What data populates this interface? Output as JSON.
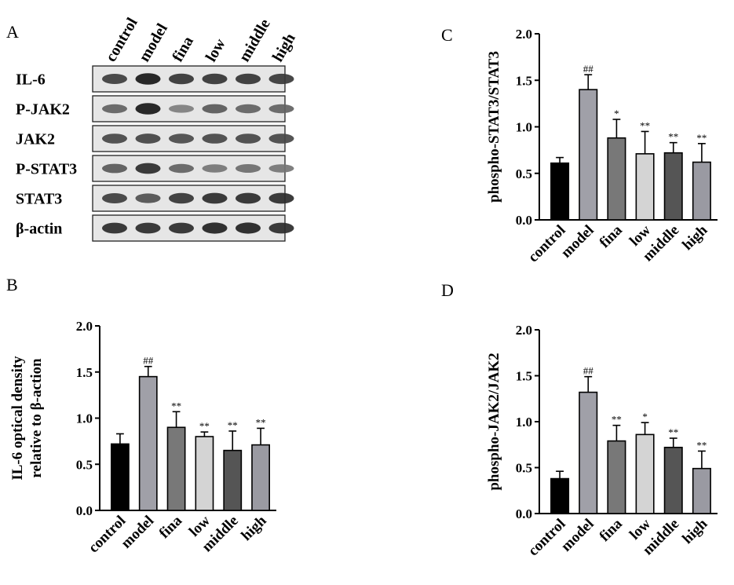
{
  "panel_letters": {
    "a": "A",
    "b": "B",
    "c": "C",
    "d": "D"
  },
  "western_blot": {
    "lanes": [
      "control",
      "model",
      "fina",
      "low",
      "middle",
      "high"
    ],
    "proteins": [
      "IL-6",
      "P-JAK2",
      "JAK2",
      "P-STAT3",
      "STAT3",
      "β-actin"
    ],
    "band_intensity": [
      [
        0.75,
        0.95,
        0.8,
        0.8,
        0.8,
        0.78
      ],
      [
        0.55,
        0.95,
        0.4,
        0.6,
        0.55,
        0.55
      ],
      [
        0.7,
        0.72,
        0.68,
        0.7,
        0.7,
        0.7
      ],
      [
        0.6,
        0.85,
        0.55,
        0.45,
        0.5,
        0.45
      ],
      [
        0.75,
        0.65,
        0.8,
        0.85,
        0.85,
        0.85
      ],
      [
        0.85,
        0.85,
        0.85,
        0.9,
        0.9,
        0.85
      ]
    ]
  },
  "chart_data": [
    {
      "panel": "B",
      "type": "bar",
      "categories": [
        "control",
        "model",
        "fina",
        "low",
        "middle",
        "high"
      ],
      "values": [
        0.72,
        1.45,
        0.9,
        0.8,
        0.65,
        0.71
      ],
      "errors": [
        0.11,
        0.11,
        0.17,
        0.05,
        0.21,
        0.18
      ],
      "significance": [
        "",
        "##",
        "**",
        "**",
        "**",
        "**"
      ],
      "colors": [
        "#000000",
        "#a0a0a8",
        "#787878",
        "#d4d4d4",
        "#555555",
        "#9a9aa2"
      ],
      "ylabel": "IL-6 optical density relative to β-action",
      "ylabel_lines": [
        "IL-6 optical density",
        "relative to β-action"
      ],
      "ylim": [
        0,
        2.0
      ],
      "yticks": [
        "0.0",
        "0.5",
        "1.0",
        "1.5",
        "2.0"
      ],
      "grid": false
    },
    {
      "panel": "C",
      "type": "bar",
      "categories": [
        "control",
        "model",
        "fina",
        "low",
        "middle",
        "high"
      ],
      "values": [
        0.61,
        1.4,
        0.88,
        0.71,
        0.72,
        0.62
      ],
      "errors": [
        0.06,
        0.16,
        0.2,
        0.24,
        0.11,
        0.2
      ],
      "significance": [
        "",
        "##",
        "*",
        "**",
        "**",
        "**"
      ],
      "colors": [
        "#000000",
        "#a0a0a8",
        "#787878",
        "#d4d4d4",
        "#555555",
        "#9a9aa2"
      ],
      "ylabel": "phospho-STAT3/STAT3",
      "ylabel_lines": [
        "phospho-STAT3/STAT3"
      ],
      "ylim": [
        0,
        2.0
      ],
      "yticks": [
        "0.0",
        "0.5",
        "1.0",
        "1.5",
        "2.0"
      ],
      "grid": false
    },
    {
      "panel": "D",
      "type": "bar",
      "categories": [
        "control",
        "model",
        "fina",
        "low",
        "middle",
        "high"
      ],
      "values": [
        0.38,
        1.32,
        0.79,
        0.86,
        0.72,
        0.49
      ],
      "errors": [
        0.08,
        0.17,
        0.17,
        0.13,
        0.1,
        0.19
      ],
      "significance": [
        "",
        "##",
        "**",
        "*",
        "**",
        "**"
      ],
      "colors": [
        "#000000",
        "#a0a0a8",
        "#787878",
        "#d4d4d4",
        "#555555",
        "#9a9aa2"
      ],
      "ylabel": "phospho-JAK2/JAK2",
      "ylabel_lines": [
        "phospho-JAK2/JAK2"
      ],
      "ylim": [
        0,
        2.0
      ],
      "yticks": [
        "0.0",
        "0.5",
        "1.0",
        "1.5",
        "2.0"
      ],
      "grid": false
    }
  ]
}
